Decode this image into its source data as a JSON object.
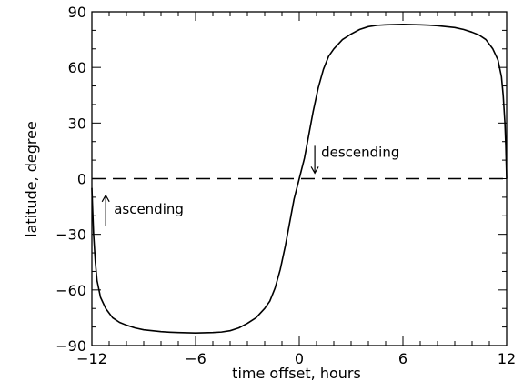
{
  "chart_data": {
    "type": "line",
    "xlabel": "time offset, hours",
    "ylabel": "latitude, degree",
    "xlim": [
      -12,
      12
    ],
    "ylim": [
      -90,
      90
    ],
    "x_ticks": [
      -12,
      -6,
      0,
      6,
      12
    ],
    "x_tick_labels": [
      "−12",
      "−6",
      "0",
      "6",
      "12"
    ],
    "y_ticks": [
      -90,
      -60,
      -30,
      0,
      30,
      60,
      90
    ],
    "y_tick_labels": [
      "−90",
      "−60",
      "−30",
      "0",
      "30",
      "60",
      "90"
    ],
    "grid": false,
    "reference_line": {
      "y": 0,
      "style": "dashed"
    },
    "series": [
      {
        "x": [
          -12,
          -11.95,
          -11.9,
          -11.8,
          -11.7,
          -11.5,
          -11.2,
          -10.8,
          -10.4,
          -10,
          -9.5,
          -9,
          -8.5,
          -8,
          -7.5,
          -7,
          -6.5,
          -6,
          -5.5,
          -5,
          -4.5,
          -4,
          -3.5,
          -3,
          -2.5,
          -2,
          -1.7,
          -1.4,
          -1.1,
          -0.8,
          -0.5,
          -0.3,
          0,
          0.3,
          0.5,
          0.8,
          1.1,
          1.4,
          1.7,
          2,
          2.5,
          3,
          3.5,
          4,
          4.5,
          5,
          5.5,
          6,
          6.5,
          7,
          7.5,
          8,
          8.5,
          9,
          9.5,
          10,
          10.4,
          10.8,
          11.2,
          11.5,
          11.7,
          11.8,
          11.9,
          11.95,
          12
        ],
        "y": [
          -5,
          -18,
          -30,
          -45,
          -55,
          -64,
          -70,
          -75,
          -77.5,
          -79,
          -80.5,
          -81.5,
          -82,
          -82.5,
          -82.8,
          -83,
          -83.1,
          -83.2,
          -83.1,
          -83,
          -82.7,
          -82,
          -80.5,
          -78,
          -75,
          -70,
          -66,
          -59,
          -49,
          -36,
          -21,
          -11,
          0,
          11,
          21,
          36,
          49,
          59,
          66,
          70,
          75,
          78,
          80.5,
          82,
          82.7,
          83,
          83.1,
          83.2,
          83.1,
          83,
          82.8,
          82.5,
          82,
          81.5,
          80.5,
          79,
          77.5,
          75,
          70,
          64,
          55,
          45,
          30,
          18,
          0
        ]
      }
    ],
    "annotations": [
      {
        "text": "ascending",
        "arrow": "up",
        "x": -11.2,
        "y": -9
      },
      {
        "text": "descending",
        "arrow": "down",
        "x": 0.9,
        "y": 3
      }
    ]
  }
}
